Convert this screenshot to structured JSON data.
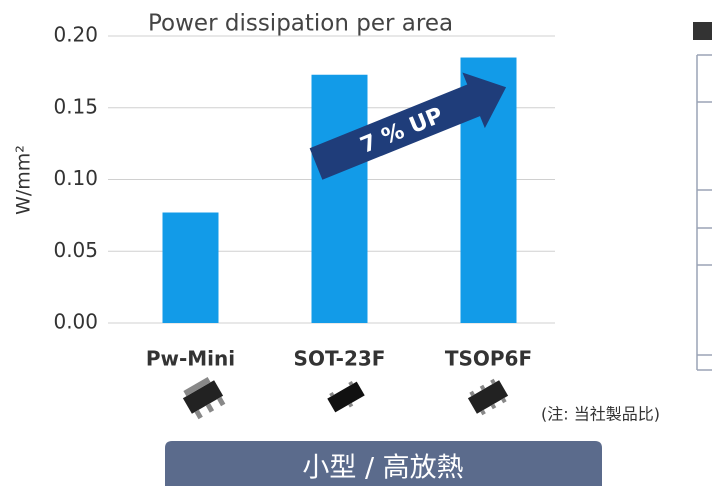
{
  "chart_data": {
    "type": "bar",
    "title": "Power dissipation per area",
    "y_label": "W/mm²",
    "categories": [
      "Pw-Mini",
      "SOT-23F",
      "TSOP6F"
    ],
    "values": [
      0.077,
      0.173,
      0.185
    ],
    "color": "#129be8",
    "ylim": [
      0,
      0.2
    ],
    "yticks": [
      {
        "value": 0,
        "label": "0.00"
      },
      {
        "value": 0.05,
        "label": "0.05"
      },
      {
        "value": 0.1,
        "label": "0.10"
      },
      {
        "value": 0.15,
        "label": "0.15"
      },
      {
        "value": 0.2,
        "label": "0.20"
      }
    ],
    "grid": true,
    "annotation": "7 % UP",
    "note": "(注: 当社製品比)",
    "banner": "小型 / 高放熱"
  }
}
